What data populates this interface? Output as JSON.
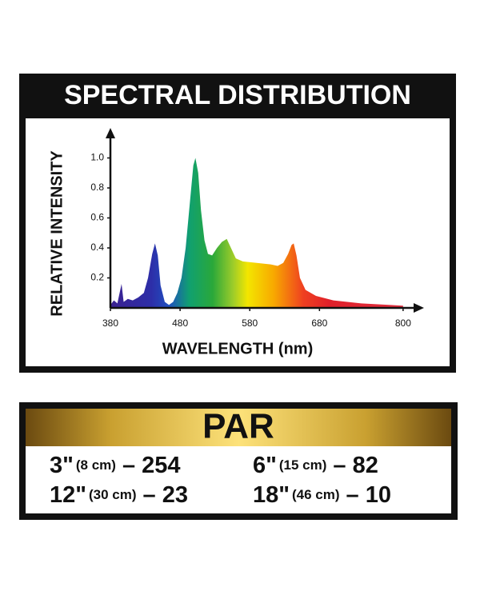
{
  "chart_data": {
    "type": "area",
    "title": "SPECTRAL DISTRIBUTION",
    "xlabel": "WAVELENGTH (nm)",
    "ylabel": "RELATIVE INTENSITY",
    "x": [
      380,
      385,
      390,
      396,
      399,
      405,
      412,
      420,
      428,
      434,
      440,
      444,
      448,
      452,
      458,
      464,
      470,
      476,
      482,
      488,
      494,
      499,
      502,
      506,
      510,
      515,
      520,
      526,
      533,
      540,
      547,
      553,
      560,
      570,
      590,
      610,
      620,
      628,
      635,
      640,
      643,
      647,
      652,
      660,
      675,
      700,
      740,
      780,
      800
    ],
    "values": [
      0.02,
      0.05,
      0.03,
      0.16,
      0.04,
      0.06,
      0.05,
      0.07,
      0.1,
      0.2,
      0.36,
      0.43,
      0.35,
      0.15,
      0.04,
      0.02,
      0.04,
      0.1,
      0.2,
      0.4,
      0.7,
      0.95,
      1.0,
      0.9,
      0.65,
      0.45,
      0.36,
      0.35,
      0.4,
      0.44,
      0.46,
      0.4,
      0.33,
      0.31,
      0.3,
      0.29,
      0.28,
      0.3,
      0.36,
      0.42,
      0.43,
      0.35,
      0.2,
      0.12,
      0.08,
      0.05,
      0.03,
      0.02,
      0.015
    ],
    "xlim": [
      380,
      830
    ],
    "ylim": [
      0,
      1.2
    ],
    "xticks": [
      380,
      480,
      580,
      680,
      800
    ],
    "yticks": [
      0.2,
      0.4,
      0.6,
      0.8,
      {
        "value": 1,
        "label": "1.0"
      }
    ]
  },
  "par": {
    "title": "PAR",
    "rows": [
      [
        {
          "distance": "3\"",
          "metric": "(8 cm)",
          "separator": "–",
          "value": "254"
        },
        {
          "distance": "6\"",
          "metric": "(15 cm)",
          "separator": "–",
          "value": "82"
        }
      ],
      [
        {
          "distance": "12\"",
          "metric": "(30 cm)",
          "separator": "–",
          "value": "23"
        },
        {
          "distance": "18\"",
          "metric": "(46 cm)",
          "separator": "–",
          "value": "10"
        }
      ]
    ]
  }
}
